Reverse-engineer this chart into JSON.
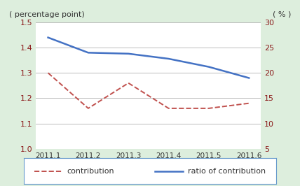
{
  "x_labels": [
    "2011.1",
    "2011.2",
    "2011.3",
    "2011.4",
    "2011.5",
    "2011.6"
  ],
  "x_values": [
    1,
    2,
    3,
    4,
    5,
    6
  ],
  "contribution": [
    1.3,
    1.16,
    1.26,
    1.16,
    1.16,
    1.18
  ],
  "ratio_of_contribution": [
    27.0,
    24.0,
    23.8,
    22.8,
    21.2,
    19.0
  ],
  "left_ylim": [
    1.0,
    1.5
  ],
  "right_ylim": [
    5,
    30
  ],
  "left_yticks": [
    1.0,
    1.1,
    1.2,
    1.3,
    1.4,
    1.5
  ],
  "right_yticks": [
    5,
    10,
    15,
    20,
    25,
    30
  ],
  "left_ylabel": "( percentage point)",
  "right_ylabel": "( % )",
  "contribution_color": "#c0504d",
  "ratio_color": "#4472c4",
  "bg_color": "#ddeedd",
  "plot_bg_color": "#ffffff",
  "grid_color": "#bbbbbb",
  "tick_color": "#8b1a1a",
  "legend_contribution": "contribution",
  "legend_ratio": "ratio of contribution",
  "legend_edge_color": "#6699cc"
}
